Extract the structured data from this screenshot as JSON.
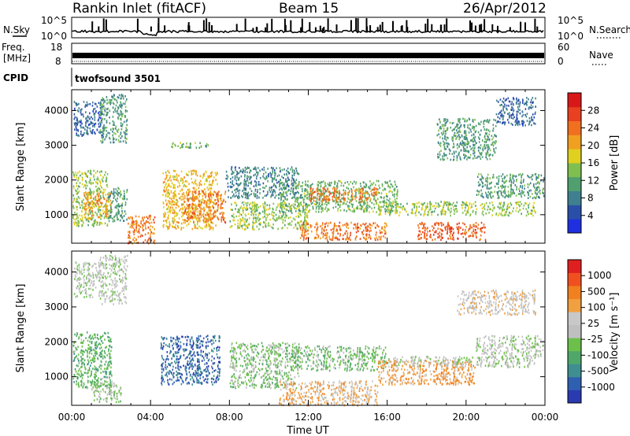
{
  "header": {
    "station": "Rankin Inlet (fitACF)",
    "beam": "Beam 15",
    "date": "26/Apr/2012"
  },
  "panels": {
    "nsky": {
      "label": "N.Sky",
      "right_label": "N.Search",
      "ticks_left": [
        "10^5",
        "10^0"
      ],
      "ticks_right": [
        "10^5",
        "10^0"
      ]
    },
    "freq": {
      "label_top": "Freq.",
      "label_unit": "[MHz]",
      "ticks_left": [
        "18",
        "8"
      ],
      "ticks_right": [
        "60",
        "0"
      ],
      "right_label": "Nave"
    },
    "cpid": {
      "label": "CPID",
      "value": "twofsound 3501"
    }
  },
  "axes": {
    "xlabel": "Time UT",
    "xticks": [
      "00:00",
      "04:00",
      "08:00",
      "12:00",
      "16:00",
      "20:00",
      "00:00"
    ],
    "ylabel": "Slant Range [km]",
    "yticks": [
      "1000",
      "2000",
      "3000",
      "4000"
    ]
  },
  "colorbars": {
    "power": {
      "label": "Power [dB]",
      "ticks": [
        "4",
        "8",
        "12",
        "16",
        "20",
        "24",
        "28"
      ],
      "colors": [
        "#1f2fe0",
        "#2a4fa8",
        "#3f7f8f",
        "#4f9f6f",
        "#7fbf4f",
        "#e0d020",
        "#f0a020",
        "#f07020",
        "#e84020",
        "#d81818"
      ]
    },
    "velocity": {
      "label": "Velocity [m s⁻¹]",
      "ticks": [
        "1000",
        "500",
        "100",
        "25",
        "-25",
        "-100",
        "-500",
        "-1000"
      ],
      "colors": [
        "#2a3ab0",
        "#2f5fb0",
        "#3f8f90",
        "#4fa86a",
        "#6cc04a",
        "#bfbfbf",
        "#c8c8c8",
        "#f0a040",
        "#f08020",
        "#f05020",
        "#e02020"
      ]
    }
  },
  "chart_data": [
    {
      "type": "heatmap",
      "name": "power",
      "xlabel": "Time UT",
      "ylabel": "Slant Range [km]",
      "xlim": [
        0,
        24
      ],
      "ylim": [
        180,
        4600
      ],
      "colorbar_label": "Power [dB]",
      "colorbar_range": [
        0,
        30
      ],
      "regions": [
        {
          "t": [
            0.1,
            1.5
          ],
          "r": [
            3300,
            4300
          ],
          "value": 6
        },
        {
          "t": [
            1.4,
            2.8
          ],
          "r": [
            3100,
            4500
          ],
          "value": 10
        },
        {
          "t": [
            0.0,
            1.8
          ],
          "r": [
            700,
            2300
          ],
          "value": 14
        },
        {
          "t": [
            0.6,
            2.0
          ],
          "r": [
            900,
            1700
          ],
          "value": 20
        },
        {
          "t": [
            1.8,
            2.8
          ],
          "r": [
            800,
            1800
          ],
          "value": 10
        },
        {
          "t": [
            2.8,
            4.2
          ],
          "r": [
            200,
            1000
          ],
          "value": 22
        },
        {
          "t": [
            4.6,
            7.4
          ],
          "r": [
            600,
            2300
          ],
          "value": 18
        },
        {
          "t": [
            5.6,
            7.8
          ],
          "r": [
            800,
            1700
          ],
          "value": 22
        },
        {
          "t": [
            5.0,
            7.0
          ],
          "r": [
            2950,
            3100
          ],
          "value": 12
        },
        {
          "t": [
            7.8,
            11.5
          ],
          "r": [
            1500,
            2400
          ],
          "value": 8
        },
        {
          "t": [
            8.0,
            12.0
          ],
          "r": [
            600,
            1400
          ],
          "value": 14
        },
        {
          "t": [
            10.5,
            16.5
          ],
          "r": [
            1100,
            2000
          ],
          "value": 12
        },
        {
          "t": [
            12.0,
            15.5
          ],
          "r": [
            1400,
            1800
          ],
          "value": 22
        },
        {
          "t": [
            11.5,
            16.0
          ],
          "r": [
            300,
            800
          ],
          "value": 22
        },
        {
          "t": [
            15.5,
            23.5
          ],
          "r": [
            1000,
            1400
          ],
          "value": 14
        },
        {
          "t": [
            17.5,
            21.0
          ],
          "r": [
            300,
            800
          ],
          "value": 24
        },
        {
          "t": [
            18.5,
            21.5
          ],
          "r": [
            2600,
            3800
          ],
          "value": 10
        },
        {
          "t": [
            20.5,
            24.0
          ],
          "r": [
            1500,
            2200
          ],
          "value": 10
        },
        {
          "t": [
            21.5,
            23.5
          ],
          "r": [
            3600,
            4400
          ],
          "value": 6
        }
      ]
    },
    {
      "type": "heatmap",
      "name": "velocity",
      "xlabel": "Time UT",
      "ylabel": "Slant Range [km]",
      "xlim": [
        0,
        24
      ],
      "ylim": [
        180,
        4600
      ],
      "colorbar_label": "Velocity [m s⁻¹]",
      "colorbar_range": [
        -1000,
        1000
      ],
      "regions": [
        {
          "t": [
            0.1,
            1.5
          ],
          "r": [
            3300,
            4300
          ],
          "value": 0
        },
        {
          "t": [
            1.4,
            2.8
          ],
          "r": [
            3100,
            4500
          ],
          "value": -20
        },
        {
          "t": [
            0.0,
            2.0
          ],
          "r": [
            700,
            2300
          ],
          "value": 300
        },
        {
          "t": [
            1.0,
            2.5
          ],
          "r": [
            300,
            900
          ],
          "value": 80
        },
        {
          "t": [
            4.5,
            7.5
          ],
          "r": [
            800,
            2200
          ],
          "value": 700
        },
        {
          "t": [
            8.0,
            11.5
          ],
          "r": [
            700,
            2000
          ],
          "value": 150
        },
        {
          "t": [
            11.0,
            16.0
          ],
          "r": [
            1200,
            1900
          ],
          "value": 200
        },
        {
          "t": [
            10.5,
            15.5
          ],
          "r": [
            200,
            900
          ],
          "value": -300
        },
        {
          "t": [
            15.5,
            20.5
          ],
          "r": [
            800,
            1500
          ],
          "value": -400
        },
        {
          "t": [
            16.0,
            23.5
          ],
          "r": [
            1300,
            1600
          ],
          "value": 0
        },
        {
          "t": [
            19.5,
            23.5
          ],
          "r": [
            2800,
            3500
          ],
          "value": -150
        },
        {
          "t": [
            20.5,
            24.0
          ],
          "r": [
            1600,
            2200
          ],
          "value": 0
        }
      ]
    }
  ]
}
